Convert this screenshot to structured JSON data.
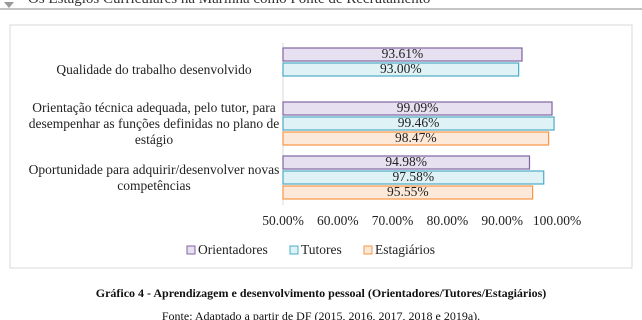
{
  "header": {
    "title": "Os Estágios Curriculares na Marinha como Fonte de Recrutamento"
  },
  "chart_data": {
    "type": "barh",
    "categories": [
      "Qualidade do trabalho desenvolvido",
      "Orientação técnica adequada, pelo tutor, para desempenhar as funções definidas no plano de estágio",
      "Oportunidade para adquirir/desenvolver novas competências"
    ],
    "series": [
      {
        "name": "Orientadores",
        "color": "#e6e0f0",
        "edge": "#8064a2",
        "values": [
          93.61,
          99.09,
          94.98
        ],
        "value_labels": [
          "93.61%",
          "99.09%",
          "94.98%"
        ]
      },
      {
        "name": "Tutores",
        "color": "#dff3f7",
        "edge": "#4bacc6",
        "values": [
          93.0,
          99.46,
          97.58
        ],
        "value_labels": [
          "93.00%",
          "99.46%",
          "97.58%"
        ]
      },
      {
        "name": "Estagiários",
        "color": "#fde9d9",
        "edge": "#f79646",
        "values": [
          null,
          98.47,
          95.55
        ],
        "value_labels": [
          null,
          "98.47%",
          "95.55%"
        ]
      }
    ],
    "xlim": [
      50,
      100
    ],
    "xticks": [
      {
        "value": 50,
        "label": "50.00%"
      },
      {
        "value": 60,
        "label": "60.00%"
      },
      {
        "value": 70,
        "label": "70.00%"
      },
      {
        "value": 80,
        "label": "80.00%"
      },
      {
        "value": 90,
        "label": "90.00%"
      },
      {
        "value": 100,
        "label": "100.00%"
      }
    ],
    "grid": false,
    "legend": "bottom"
  },
  "caption": "Gráfico 4 - Aprendizagem e desenvolvimento pessoal (Orientadores/Tutores/Estagiários)",
  "source": "Fonte: Adaptado a partir de DF (2015, 2016, 2017, 2018 e 2019a)."
}
